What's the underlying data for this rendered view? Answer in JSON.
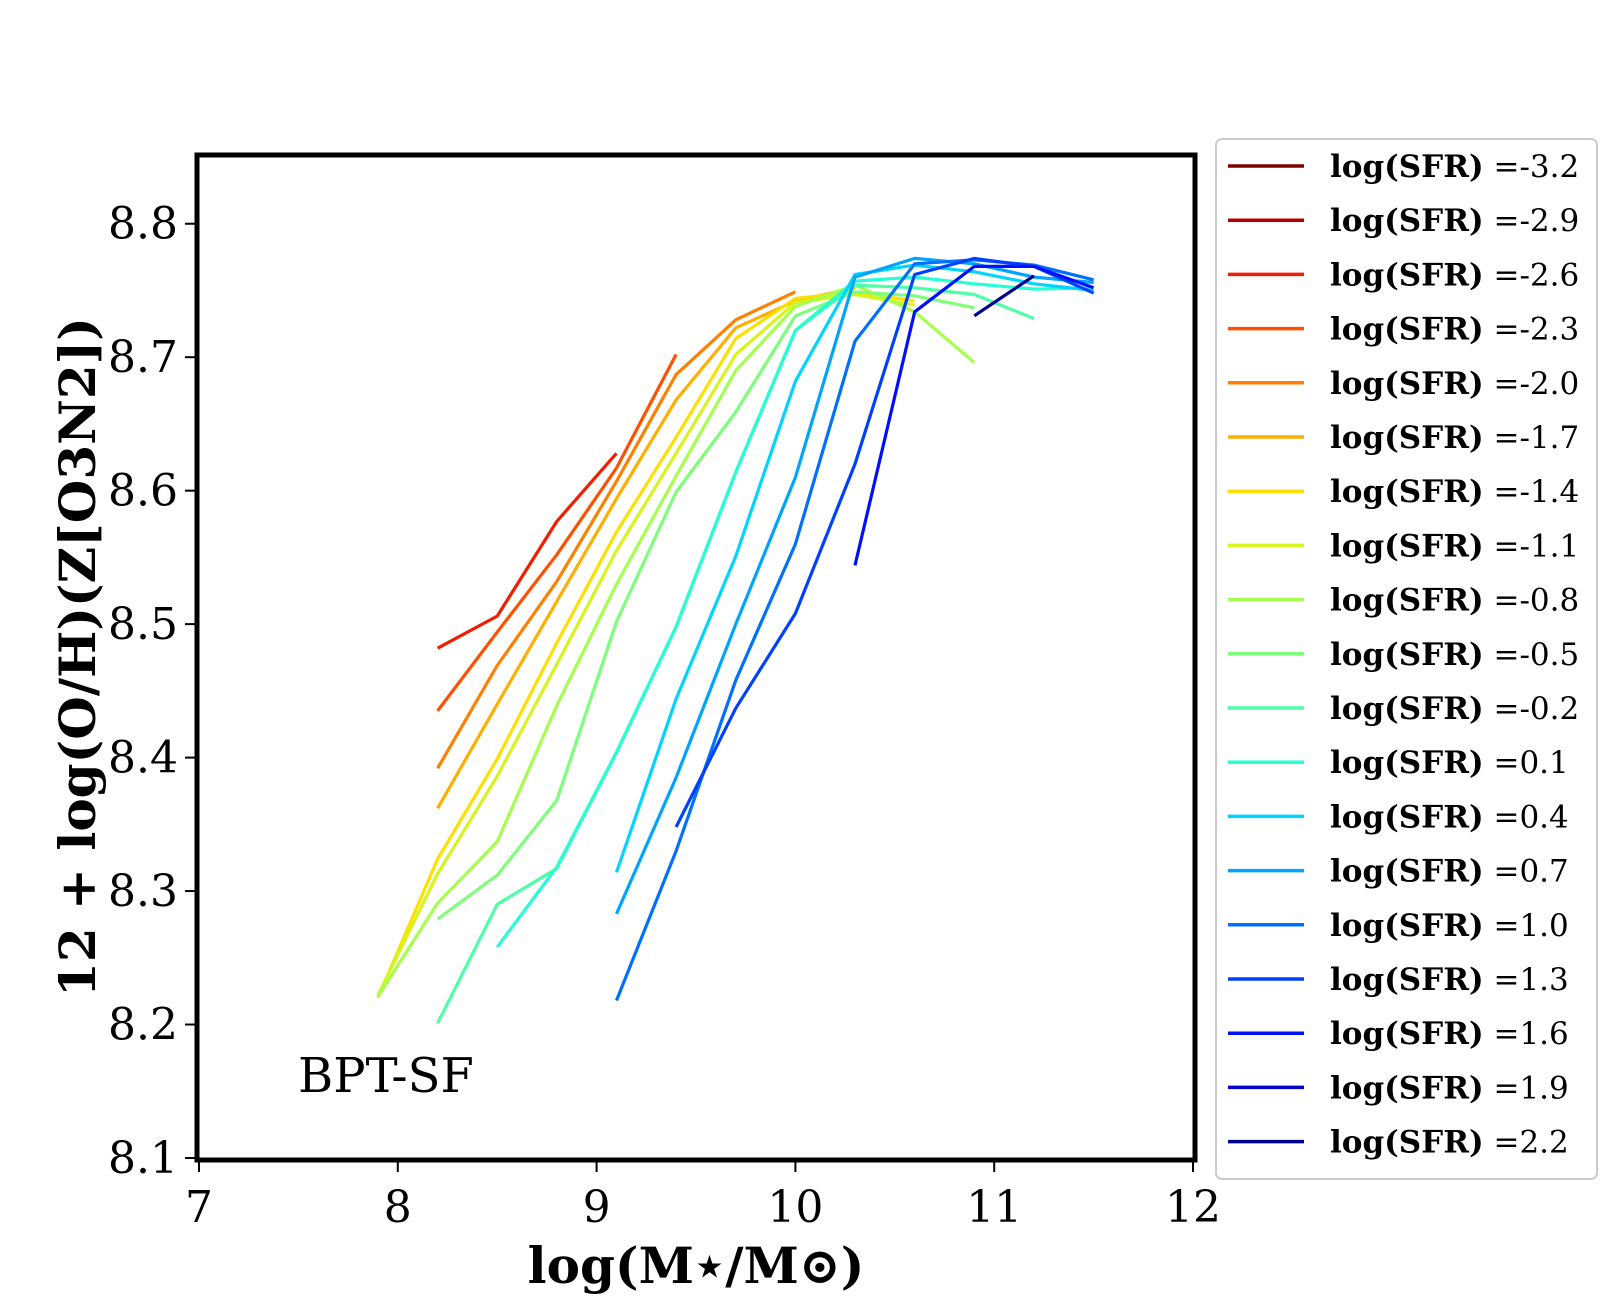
{
  "chart_data": {
    "type": "line",
    "title": "",
    "xlabel": "log(M⋆/M⊙)",
    "ylabel": "12 + log(O/H)(Z[O3N2])",
    "xlim": [
      7,
      12
    ],
    "ylim": [
      8.1,
      8.85
    ],
    "xticks": [
      7,
      8,
      9,
      10,
      11,
      12
    ],
    "xtick_labels": [
      "7",
      "8",
      "9",
      "10",
      "11",
      "12"
    ],
    "yticks": [
      8.1,
      8.2,
      8.3,
      8.4,
      8.5,
      8.6,
      8.7,
      8.8
    ],
    "ytick_labels": [
      "8.1",
      "8.2",
      "8.3",
      "8.4",
      "8.5",
      "8.6",
      "8.7",
      "8.8"
    ],
    "grid": false,
    "annotation": "BPT-SF",
    "legend_position": "outside-right",
    "legend_prefix": "log(SFR)",
    "legend_separator": " =",
    "series": [
      {
        "name": "-3.2",
        "color": "#7f0000",
        "x": [],
        "y": []
      },
      {
        "name": "-2.9",
        "color": "#b40000",
        "x": [],
        "y": []
      },
      {
        "name": "-2.6",
        "color": "#f21c00",
        "x": [
          8.2,
          8.5,
          8.8,
          9.1
        ],
        "y": [
          8.482,
          8.506,
          8.577,
          8.628
        ]
      },
      {
        "name": "-2.3",
        "color": "#ff5000",
        "x": [
          8.2,
          8.5,
          8.8,
          9.1,
          9.4
        ],
        "y": [
          8.435,
          8.494,
          8.552,
          8.617,
          8.702
        ]
      },
      {
        "name": "-2.0",
        "color": "#ff7f00",
        "x": [
          8.2,
          8.5,
          8.8,
          9.1,
          9.4,
          9.7,
          10.0
        ],
        "y": [
          8.392,
          8.469,
          8.532,
          8.607,
          8.687,
          8.728,
          8.749
        ]
      },
      {
        "name": "-1.7",
        "color": "#ffaf00",
        "x": [
          8.2,
          8.5,
          8.8,
          9.1,
          9.4,
          9.7,
          10.0,
          10.3
        ],
        "y": [
          8.362,
          8.44,
          8.517,
          8.594,
          8.668,
          8.722,
          8.742,
          8.752
        ]
      },
      {
        "name": "-1.4",
        "color": "#fde000",
        "x": [
          7.9,
          8.2,
          8.5,
          8.8,
          9.1,
          9.4,
          9.7,
          10.0,
          10.3,
          10.6
        ],
        "y": [
          8.22,
          8.324,
          8.399,
          8.486,
          8.569,
          8.64,
          8.714,
          8.744,
          8.749,
          8.742
        ]
      },
      {
        "name": "-1.1",
        "color": "#d6f51d",
        "x": [
          7.9,
          8.2,
          8.5,
          8.8,
          9.1,
          9.4,
          9.7,
          10.0,
          10.3,
          10.6
        ],
        "y": [
          8.222,
          8.313,
          8.386,
          8.47,
          8.555,
          8.628,
          8.702,
          8.741,
          8.747,
          8.739
        ]
      },
      {
        "name": "-0.8",
        "color": "#a6ff4d",
        "x": [
          7.9,
          8.2,
          8.5,
          8.8,
          9.1,
          9.4,
          9.7,
          10.0,
          10.3,
          10.6,
          10.9
        ],
        "y": [
          8.221,
          8.291,
          8.337,
          8.439,
          8.53,
          8.611,
          8.69,
          8.738,
          8.754,
          8.734,
          8.696
        ]
      },
      {
        "name": "-0.5",
        "color": "#7dff7a",
        "x": [
          8.2,
          8.5,
          8.8,
          9.1,
          9.4,
          9.7,
          10.0,
          10.3,
          10.6,
          10.9
        ],
        "y": [
          8.279,
          8.312,
          8.368,
          8.502,
          8.599,
          8.659,
          8.731,
          8.749,
          8.746,
          8.737
        ]
      },
      {
        "name": "-0.2",
        "color": "#4dffa6",
        "x": [
          8.2,
          8.5,
          8.8,
          9.1,
          9.4,
          9.7,
          10.0,
          10.3,
          10.6,
          10.9,
          11.2
        ],
        "y": [
          8.201,
          8.29,
          8.317,
          8.404,
          8.498,
          8.614,
          8.72,
          8.754,
          8.752,
          8.747,
          8.729
        ]
      },
      {
        "name": "0.1",
        "color": "#26ffd4",
        "x": [
          8.5,
          8.8,
          9.1,
          9.4,
          9.7,
          10.0,
          10.3,
          10.6,
          10.9,
          11.2,
          11.5
        ],
        "y": [
          8.258,
          8.318,
          8.404,
          8.498,
          8.614,
          8.72,
          8.757,
          8.76,
          8.755,
          8.751,
          8.752
        ]
      },
      {
        "name": "0.4",
        "color": "#00d4ff",
        "x": [
          9.1,
          9.4,
          9.7,
          10.0,
          10.3,
          10.6,
          10.9,
          11.2,
          11.5
        ],
        "y": [
          8.314,
          8.444,
          8.551,
          8.682,
          8.762,
          8.769,
          8.764,
          8.755,
          8.75
        ]
      },
      {
        "name": "0.7",
        "color": "#00a4ff",
        "x": [
          9.1,
          9.4,
          9.7,
          10.0,
          10.3,
          10.6,
          10.9,
          11.2,
          11.5
        ],
        "y": [
          8.283,
          8.385,
          8.5,
          8.61,
          8.76,
          8.774,
          8.77,
          8.76,
          8.756
        ]
      },
      {
        "name": "1.0",
        "color": "#0070ff",
        "x": [
          9.1,
          9.4,
          9.7,
          10.0,
          10.3,
          10.6,
          10.9,
          11.2,
          11.5
        ],
        "y": [
          8.218,
          8.33,
          8.458,
          8.56,
          8.712,
          8.77,
          8.773,
          8.769,
          8.758
        ]
      },
      {
        "name": "1.3",
        "color": "#0040ff",
        "x": [
          9.4,
          9.7,
          10.0,
          10.3,
          10.6,
          10.9,
          11.2,
          11.5
        ],
        "y": [
          8.348,
          8.437,
          8.508,
          8.62,
          8.762,
          8.774,
          8.768,
          8.748
        ]
      },
      {
        "name": "1.6",
        "color": "#0010ff",
        "x": [
          10.3,
          10.6,
          10.9,
          11.2,
          11.5
        ],
        "y": [
          8.544,
          8.734,
          8.768,
          8.768,
          8.752
        ]
      },
      {
        "name": "1.9",
        "color": "#0000c8",
        "x": [],
        "y": []
      },
      {
        "name": "2.2",
        "color": "#00008f",
        "x": [
          10.9,
          11.2
        ],
        "y": [
          8.731,
          8.761
        ]
      }
    ]
  }
}
